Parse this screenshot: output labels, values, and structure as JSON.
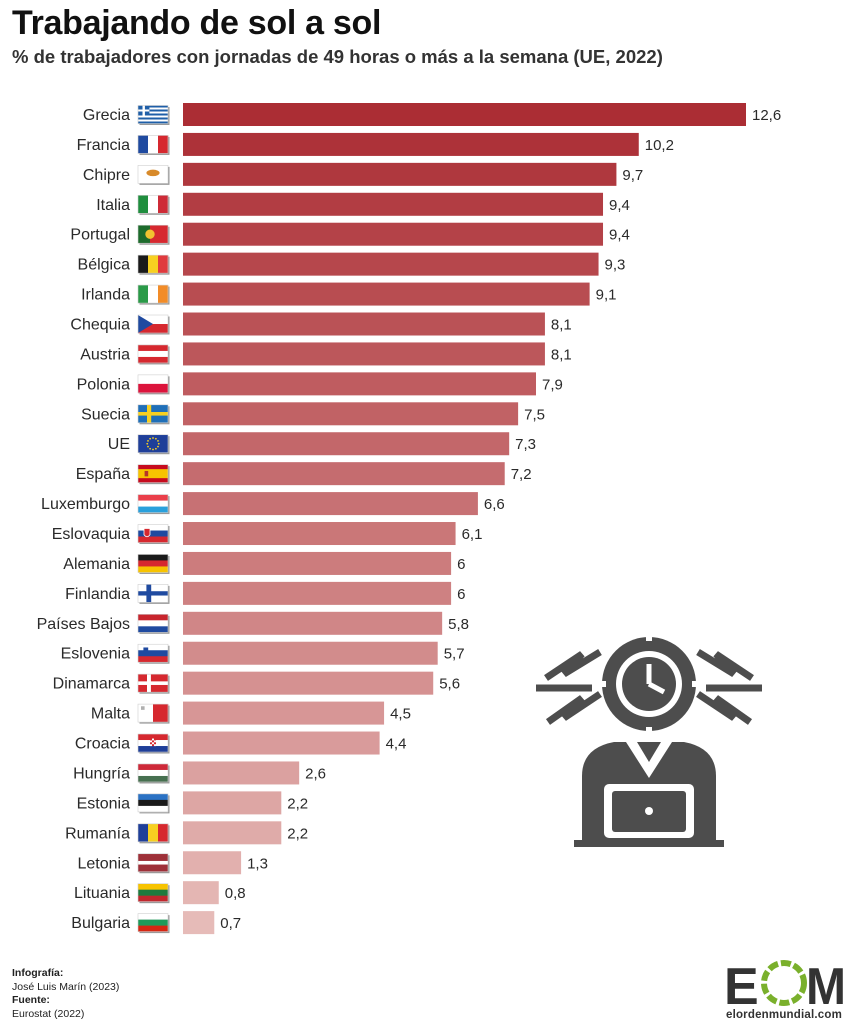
{
  "title": "Trabajando de sol a sol",
  "subtitle": "% de trabajadores con jornadas de 49 horas o más a la semana (UE, 2022)",
  "chart_data": {
    "type": "bar",
    "orientation": "horizontal",
    "categories": [
      "Grecia",
      "Francia",
      "Chipre",
      "Italia",
      "Portugal",
      "Bélgica",
      "Irlanda",
      "Chequia",
      "Austria",
      "Polonia",
      "Suecia",
      "UE",
      "España",
      "Luxemburgo",
      "Eslovaquia",
      "Alemania",
      "Finlandia",
      "Países Bajos",
      "Eslovenia",
      "Dinamarca",
      "Malta",
      "Croacia",
      "Hungría",
      "Estonia",
      "Rumanía",
      "Letonia",
      "Lituania",
      "Bulgaria"
    ],
    "values": [
      12.6,
      10.2,
      9.7,
      9.4,
      9.4,
      9.3,
      9.1,
      8.1,
      8.1,
      7.9,
      7.5,
      7.3,
      7.2,
      6.6,
      6.1,
      6,
      6,
      5.8,
      5.7,
      5.6,
      4.5,
      4.4,
      2.6,
      2.2,
      2.2,
      1.3,
      0.8,
      0.7
    ],
    "value_labels": [
      "12,6",
      "10,2",
      "9,7",
      "9,4",
      "9,4",
      "9,3",
      "9,1",
      "8,1",
      "8,1",
      "7,9",
      "7,5",
      "7,3",
      "7,2",
      "6,6",
      "6,1",
      "6",
      "6",
      "5,8",
      "5,7",
      "5,6",
      "4,5",
      "4,4",
      "2,6",
      "2,2",
      "2,2",
      "1,3",
      "0,8",
      "0,7"
    ],
    "xlim": [
      0,
      12.6
    ],
    "grid": false,
    "legend": "none",
    "color_scale": [
      "#ab2d34",
      "#e6bbb8"
    ]
  },
  "icons": {
    "flags": "country-flag-icons",
    "illustration": "overworked-person-with-clock-icon"
  },
  "credits": {
    "infografia_label": "Infografía:",
    "infografia_value": "José Luis Marín (2023)",
    "fuente_label": "Fuente:",
    "fuente_value": "Eurostat (2022)"
  },
  "logo": {
    "letters": "EOM",
    "site": "elordenmundial.com",
    "accent": "#7ab02c"
  }
}
